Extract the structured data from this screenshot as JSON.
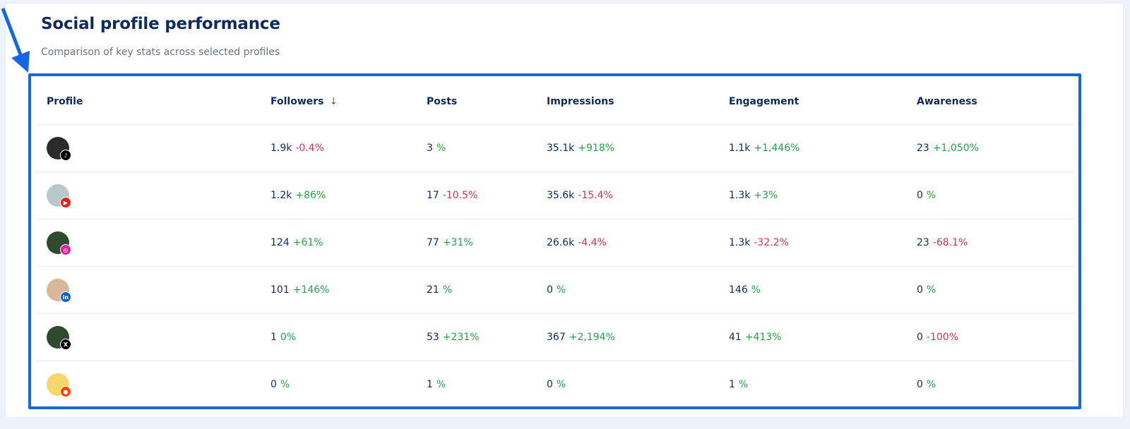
{
  "header": {
    "title": "Social profile performance",
    "subtitle": "Comparison of key stats across selected profiles"
  },
  "colors": {
    "accent": "#1467e0",
    "positive": "#22a447",
    "negative": "#d6334f",
    "text": "#0f2b5b"
  },
  "table": {
    "columns": [
      "Profile",
      "Followers",
      "Posts",
      "Impressions",
      "Engagement",
      "Awareness"
    ],
    "sorted_column": "Followers",
    "sort_direction": "descending",
    "sort_icon": "arrow-down-icon",
    "rows": [
      {
        "network": "tiktok",
        "avatar_color": "#2b2b2b",
        "badge_color": "#000000",
        "badge_glyph": "♪",
        "cells": [
          [
            "1.9k",
            "-0.4%",
            "neg"
          ],
          [
            "3",
            "%",
            "pos"
          ],
          [
            "35.1k",
            "+918%",
            "pos"
          ],
          [
            "1.1k",
            "+1,446%",
            "pos"
          ],
          [
            "23",
            "+1,050%",
            "pos"
          ]
        ]
      },
      {
        "network": "youtube",
        "avatar_color": "#b8c9cc",
        "badge_color": "#e62117",
        "badge_glyph": "▶",
        "cells": [
          [
            "1.2k",
            "+86%",
            "pos"
          ],
          [
            "17",
            "-10.5%",
            "neg"
          ],
          [
            "35.6k",
            "-15.4%",
            "neg"
          ],
          [
            "1.3k",
            "+3%",
            "pos"
          ],
          [
            "0",
            "%",
            "pos"
          ]
        ]
      },
      {
        "network": "instagram",
        "avatar_color": "#2f4a2e",
        "badge_color": "#d6249f",
        "badge_glyph": "◎",
        "cells": [
          [
            "124",
            "+61%",
            "pos"
          ],
          [
            "77",
            "+31%",
            "pos"
          ],
          [
            "26.6k",
            "-4.4%",
            "neg"
          ],
          [
            "1.3k",
            "-32.2%",
            "neg"
          ],
          [
            "23",
            "-68.1%",
            "neg"
          ]
        ]
      },
      {
        "network": "linkedin",
        "avatar_color": "#d9b79a",
        "badge_color": "#0a66c2",
        "badge_glyph": "in",
        "cells": [
          [
            "101",
            "+146%",
            "pos"
          ],
          [
            "21",
            "%",
            "pos"
          ],
          [
            "0",
            "%",
            "pos"
          ],
          [
            "146",
            "%",
            "pos"
          ],
          [
            "0",
            "%",
            "pos"
          ]
        ]
      },
      {
        "network": "x",
        "avatar_color": "#2f4a2e",
        "badge_color": "#000000",
        "badge_glyph": "X",
        "cells": [
          [
            "1",
            "0%",
            "pos"
          ],
          [
            "53",
            "+231%",
            "pos"
          ],
          [
            "367",
            "+2,194%",
            "pos"
          ],
          [
            "41",
            "+413%",
            "pos"
          ],
          [
            "0",
            "-100%",
            "neg"
          ]
        ]
      },
      {
        "network": "reddit",
        "avatar_color": "#f5d76e",
        "badge_color": "#ff4500",
        "badge_glyph": "●",
        "cells": [
          [
            "0",
            "%",
            "pos"
          ],
          [
            "1",
            "%",
            "pos"
          ],
          [
            "0",
            "%",
            "pos"
          ],
          [
            "1",
            "%",
            "pos"
          ],
          [
            "0",
            "%",
            "pos"
          ]
        ]
      }
    ]
  }
}
